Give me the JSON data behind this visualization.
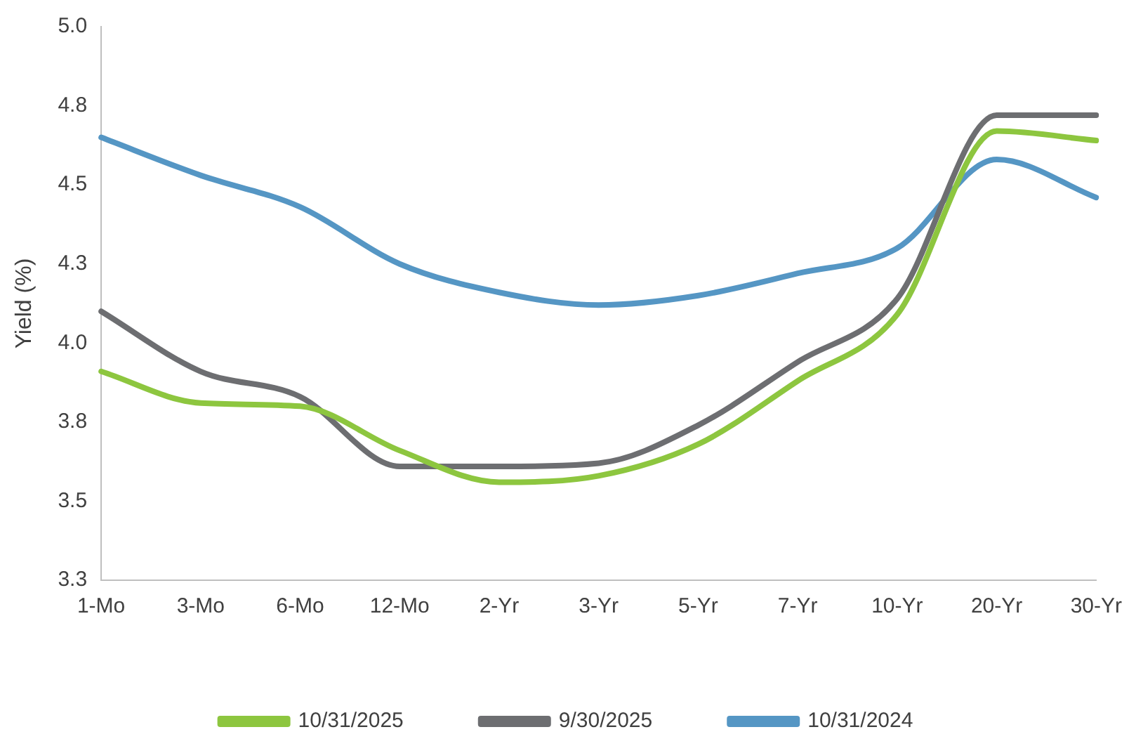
{
  "chart_data": {
    "type": "line",
    "ylabel": "Yield (%)",
    "categories": [
      "1-Mo",
      "3-Mo",
      "6-Mo",
      "12-Mo",
      "2-Yr",
      "3-Yr",
      "5-Yr",
      "7-Yr",
      "10-Yr",
      "20-Yr",
      "30-Yr"
    ],
    "series": [
      {
        "name": "10/31/2025",
        "color": "#8dc63f",
        "values": [
          3.91,
          3.81,
          3.8,
          3.66,
          3.56,
          3.58,
          3.68,
          3.88,
          4.09,
          4.67,
          4.64
        ]
      },
      {
        "name": "9/30/2025",
        "color": "#6d6e71",
        "values": [
          4.1,
          3.91,
          3.83,
          3.61,
          3.61,
          3.62,
          3.74,
          3.94,
          4.14,
          4.72,
          4.72
        ]
      },
      {
        "name": "10/31/2024",
        "color": "#5596c4",
        "values": [
          4.65,
          4.53,
          4.43,
          4.25,
          4.16,
          4.12,
          4.15,
          4.22,
          4.3,
          4.58,
          4.46
        ]
      }
    ],
    "ylim": [
      3.25,
      5.0
    ],
    "yticks": [
      {
        "value": 3.25,
        "label": "3.3"
      },
      3.5,
      {
        "value": 3.75,
        "label": "3.8"
      },
      {
        "value": 4.0,
        "label": "4.0"
      },
      {
        "value": 4.25,
        "label": "4.3"
      },
      4.5,
      {
        "value": 4.75,
        "label": "4.8"
      },
      {
        "value": 5.0,
        "label": "5.0"
      }
    ],
    "grid": false,
    "legend": "bottom",
    "marker": "none",
    "line_style": "solid"
  }
}
